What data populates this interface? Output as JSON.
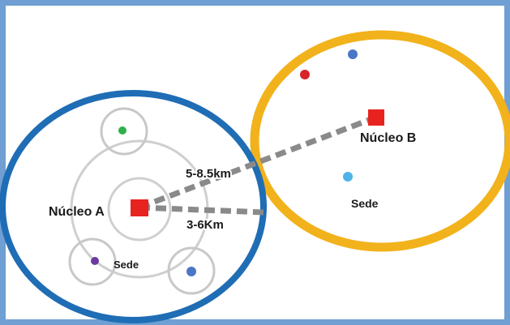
{
  "nodes": {
    "nucleo_a": {
      "label": "Núcleo A",
      "color": "#e8231f"
    },
    "nucleo_b": {
      "label": "Núcleo B",
      "color": "#e8231f"
    }
  },
  "sede_labels": {
    "left": "Sede",
    "right": "Sede"
  },
  "distances": {
    "to_nucleo_b": "5-8.5km",
    "to_cluster_edge": "3-6Km"
  },
  "colors": {
    "frame_border": "#6f9fd3",
    "cluster_a_ring": "#1f6db5",
    "cluster_b_ring": "#f2b21b",
    "satellite_rings": "#c8c8c8",
    "connector": "#8a8a8a",
    "dot_green": "#2fb04a",
    "dot_purple": "#6a3aa0",
    "dot_blue": "#4a76c6",
    "dot_red": "#d8232a",
    "dot_lightblue": "#4fb3e8"
  }
}
